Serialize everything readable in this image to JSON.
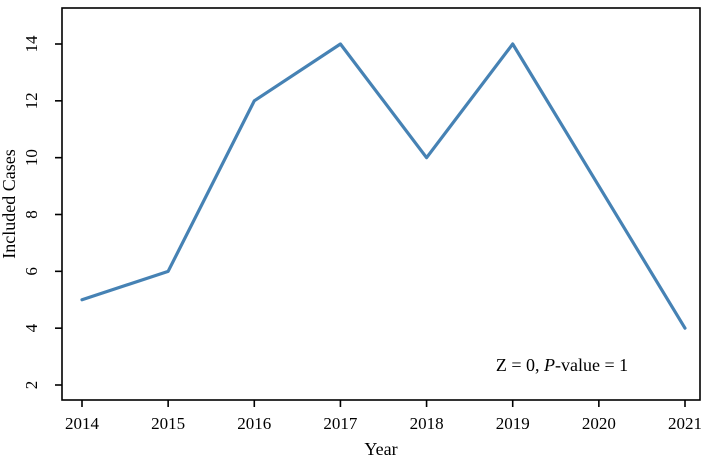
{
  "chart_data": {
    "type": "line",
    "title": "",
    "xlabel": "Year",
    "ylabel": "Included Cases",
    "x": [
      2014,
      2015,
      2016,
      2017,
      2018,
      2019,
      2020,
      2021
    ],
    "series": [
      {
        "name": "Included Cases",
        "values": [
          5,
          6,
          12,
          14,
          10,
          14,
          9,
          4
        ]
      }
    ],
    "x_tick_labels": [
      "2014",
      "2015",
      "2016",
      "2017",
      "2018",
      "2019",
      "2020",
      "2021"
    ],
    "y_ticks": [
      2,
      4,
      6,
      8,
      10,
      12,
      14
    ],
    "y_tick_labels": [
      "2",
      "4",
      "6",
      "8",
      "10",
      "12",
      "14"
    ],
    "xlim": [
      2014,
      2021
    ],
    "ylim": [
      2,
      14
    ],
    "grid": false,
    "legend": "none",
    "line_color": "#4682B4",
    "axis_color": "#000000",
    "background_color": "#ffffff",
    "annotation": {
      "full_text": "Z = 0, P-value = 1",
      "prefix": "Z = 0, ",
      "italic_part": "P",
      "suffix": "-value = 1"
    }
  }
}
